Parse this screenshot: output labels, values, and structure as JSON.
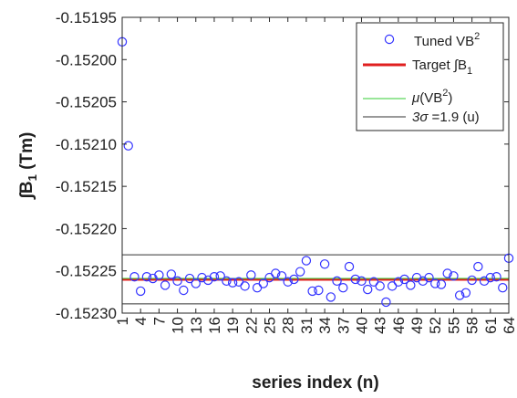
{
  "chart_data": {
    "type": "scatter",
    "xlabel": "series index (n)",
    "ylabel_parts": {
      "sym": "∫",
      "main": "B",
      "sub": "1",
      "unit": " (Tm)"
    },
    "xlim": [
      1,
      64
    ],
    "ylim": [
      -0.1523,
      -0.15195
    ],
    "x_ticks": [
      1,
      4,
      7,
      10,
      13,
      16,
      19,
      22,
      25,
      28,
      31,
      34,
      37,
      40,
      43,
      46,
      49,
      52,
      55,
      58,
      61,
      64
    ],
    "y_ticks": [
      -0.1523,
      -0.15225,
      -0.1522,
      -0.15215,
      -0.1521,
      -0.15205,
      -0.152,
      -0.15195
    ],
    "y_tick_labels": [
      "-0.15230",
      "-0.15225",
      "-0.15220",
      "-0.15215",
      "-0.15210",
      "-0.15205",
      "-0.15200",
      "-0.15195"
    ],
    "series": [
      {
        "legend": {
          "main": "Tuned VB",
          "sup": "2"
        },
        "marker": "circle",
        "color": "#3333ff",
        "x": [
          1,
          2,
          3,
          4,
          5,
          6,
          7,
          8,
          9,
          10,
          11,
          12,
          13,
          14,
          15,
          16,
          17,
          18,
          19,
          20,
          21,
          22,
          23,
          24,
          25,
          26,
          27,
          28,
          29,
          30,
          31,
          32,
          33,
          34,
          35,
          36,
          37,
          38,
          39,
          40,
          41,
          42,
          43,
          44,
          45,
          46,
          47,
          48,
          49,
          50,
          51,
          52,
          53,
          54,
          55,
          56,
          57,
          58,
          59,
          60,
          61,
          62,
          63,
          64
        ],
        "y": [
          -0.151979,
          -0.152102,
          -0.152257,
          -0.152274,
          -0.152257,
          -0.152259,
          -0.152255,
          -0.152267,
          -0.152254,
          -0.152262,
          -0.152273,
          -0.152259,
          -0.152265,
          -0.152258,
          -0.152261,
          -0.152257,
          -0.152256,
          -0.152262,
          -0.152264,
          -0.152263,
          -0.152268,
          -0.152255,
          -0.15227,
          -0.152265,
          -0.152258,
          -0.152253,
          -0.152256,
          -0.152263,
          -0.15226,
          -0.152251,
          -0.152238,
          -0.152274,
          -0.152273,
          -0.152242,
          -0.152281,
          -0.152262,
          -0.15227,
          -0.152245,
          -0.15226,
          -0.152262,
          -0.152272,
          -0.152263,
          -0.152268,
          -0.152287,
          -0.152268,
          -0.152263,
          -0.15226,
          -0.152267,
          -0.152258,
          -0.152262,
          -0.152258,
          -0.152265,
          -0.152266,
          -0.152253,
          -0.152256,
          -0.152279,
          -0.152276,
          -0.152261,
          -0.152245,
          -0.152262,
          -0.152258,
          -0.152257,
          -0.15227,
          -0.152235
        ]
      },
      {
        "legend": {
          "main": "Target ∫B",
          "sub": "1"
        },
        "marker": "line",
        "color": "#e02020",
        "value": -0.15226
      },
      {
        "legend": {
          "pre": "μ",
          "main": "(VB",
          "sup": "2",
          "post": ")"
        },
        "marker": "line",
        "color": "#33cc33",
        "value": -0.152259
      },
      {
        "legend": {
          "pre": "3σ",
          "main": " =1.9 (u)"
        },
        "marker": "line",
        "color": "#333333",
        "values": [
          -0.152231,
          -0.152289
        ]
      }
    ],
    "legend_position": "top-right",
    "grid": false
  }
}
